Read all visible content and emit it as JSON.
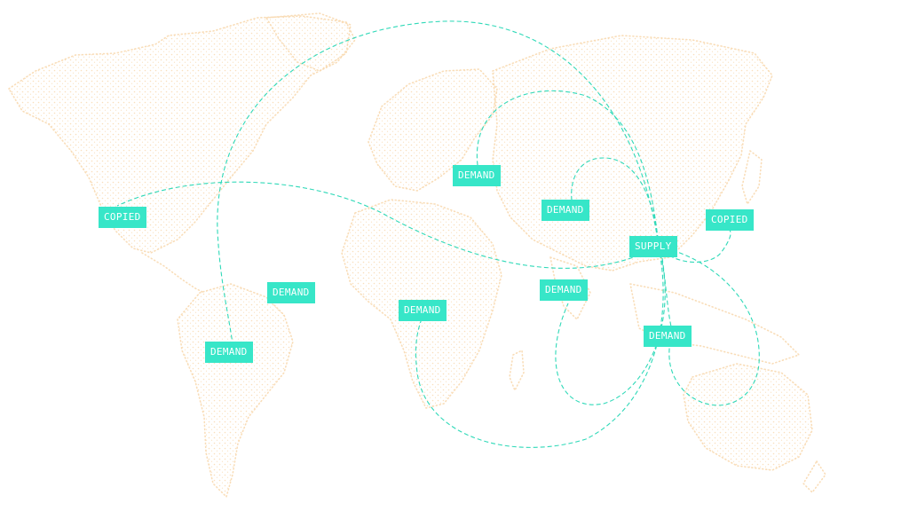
{
  "map": {
    "nodes": [
      {
        "label": "COPIED"
      },
      {
        "label": "DEMAND"
      },
      {
        "label": "DEMAND"
      },
      {
        "label": "DEMAND"
      },
      {
        "label": "DEMAND"
      },
      {
        "label": "DEMAND"
      },
      {
        "label": "SUPPLY"
      },
      {
        "label": "COPIED"
      },
      {
        "label": "DEMAND"
      },
      {
        "label": "DEMAND"
      }
    ],
    "colors": {
      "node_background": "#37e6c8",
      "node_text": "#ffffff",
      "route_line": "#2fd9b8",
      "land_dots": "#f8d9b0"
    }
  }
}
